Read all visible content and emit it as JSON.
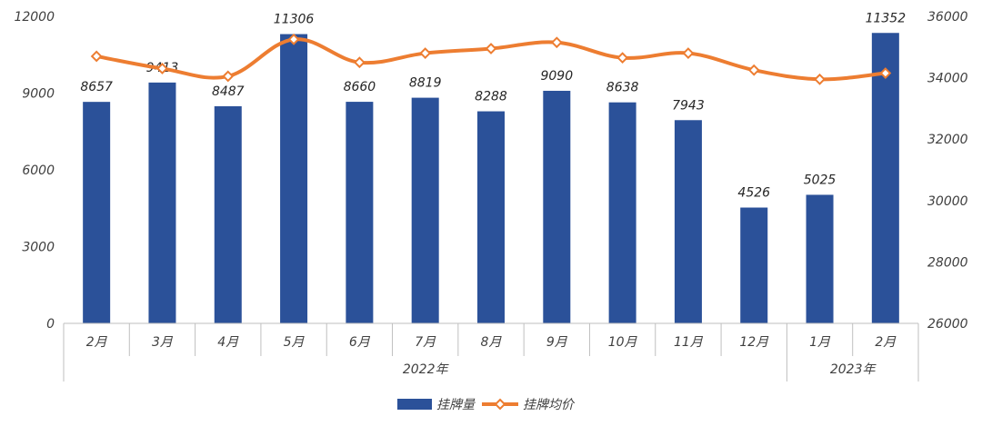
{
  "chart_data": {
    "type": "bar",
    "categories": [
      "2月",
      "3月",
      "4月",
      "5月",
      "6月",
      "7月",
      "8月",
      "9月",
      "10月",
      "11月",
      "12月",
      "1月",
      "2月"
    ],
    "groups": [
      {
        "label": "2022年",
        "count": 11
      },
      {
        "label": "2023年",
        "count": 2
      }
    ],
    "series": [
      {
        "name": "挂牌量",
        "type": "bar",
        "axis": "left",
        "color": "#2b5199",
        "values": [
          8657,
          9413,
          8487,
          11306,
          8660,
          8819,
          8288,
          9090,
          8638,
          7943,
          4526,
          5025,
          11352
        ],
        "labels": [
          "8657",
          "9413",
          "8487",
          "11306",
          "8660",
          "8819",
          "8288",
          "9090",
          "8638",
          "7943",
          "4526",
          "5025",
          "11352"
        ]
      },
      {
        "name": "挂牌均价",
        "type": "line",
        "axis": "right",
        "color": "#ed7d31",
        "values": [
          34700,
          34300,
          34050,
          35250,
          34500,
          34800,
          34950,
          35150,
          34650,
          34800,
          34250,
          33950,
          34150
        ]
      }
    ],
    "y_left": {
      "min": 0,
      "max": 12000,
      "ticks": [
        "0",
        "3000",
        "6000",
        "9000",
        "12000"
      ]
    },
    "y_right": {
      "min": 26000,
      "max": 36000,
      "ticks": [
        "26000",
        "28000",
        "30000",
        "32000",
        "34000",
        "36000"
      ]
    },
    "grid": false,
    "legend": "bottom"
  }
}
